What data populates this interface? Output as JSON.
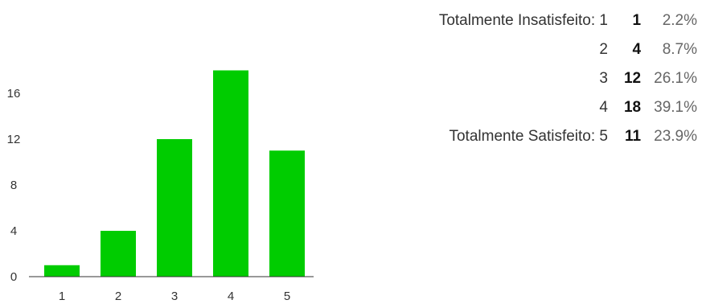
{
  "chart_data": {
    "type": "bar",
    "categories": [
      "1",
      "2",
      "3",
      "4",
      "5"
    ],
    "values": [
      1,
      4,
      12,
      18,
      11
    ],
    "yticks": [
      "0",
      "4",
      "8",
      "12",
      "16"
    ],
    "ylim": [
      0,
      20
    ],
    "bar_color": "#00cc00",
    "grid": false
  },
  "summary": {
    "rows": [
      {
        "label": "Totalmente Insatisfeito: 1",
        "count": "1",
        "percent": "2.2%"
      },
      {
        "label": "2",
        "count": "4",
        "percent": "8.7%"
      },
      {
        "label": "3",
        "count": "12",
        "percent": "26.1%"
      },
      {
        "label": "4",
        "count": "18",
        "percent": "39.1%"
      },
      {
        "label": "Totalmente Satisfeito: 5",
        "count": "11",
        "percent": "23.9%"
      }
    ]
  }
}
